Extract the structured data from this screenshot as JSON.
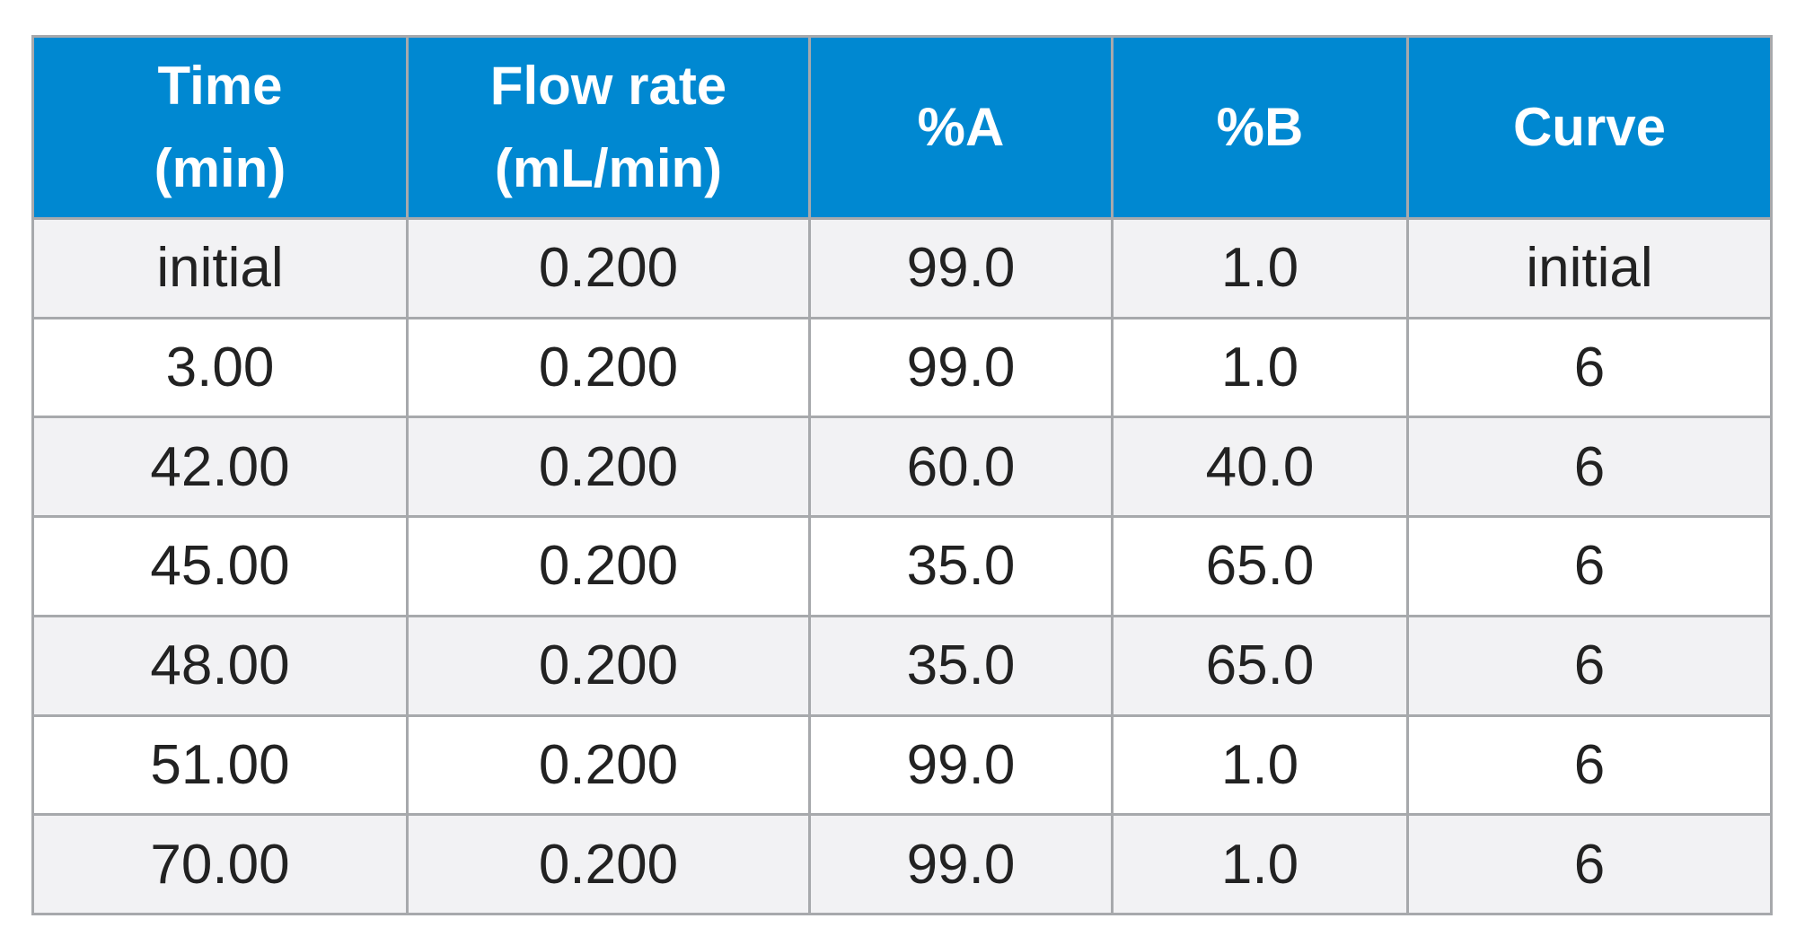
{
  "table": {
    "columns": [
      {
        "line1": "Time",
        "line2": "(min)"
      },
      {
        "line1": "Flow rate",
        "line2": "(mL/min)"
      },
      {
        "line1": "%A",
        "line2": ""
      },
      {
        "line1": "%B",
        "line2": ""
      },
      {
        "line1": "Curve",
        "line2": ""
      }
    ],
    "rows": [
      [
        "initial",
        "0.200",
        "99.0",
        "1.0",
        "initial"
      ],
      [
        "3.00",
        "0.200",
        "99.0",
        "1.0",
        "6"
      ],
      [
        "42.00",
        "0.200",
        "60.0",
        "40.0",
        "6"
      ],
      [
        "45.00",
        "0.200",
        "35.0",
        "65.0",
        "6"
      ],
      [
        "48.00",
        "0.200",
        "35.0",
        "65.0",
        "6"
      ],
      [
        "51.00",
        "0.200",
        "99.0",
        "1.0",
        "6"
      ],
      [
        "70.00",
        "0.200",
        "99.0",
        "1.0",
        "6"
      ]
    ]
  },
  "colors": {
    "header_background": "#0088d1",
    "header_text": "#ffffff",
    "row_odd": "#f2f2f4",
    "row_even": "#ffffff",
    "border": "#a7a9ac",
    "cell_text": "#222222"
  }
}
